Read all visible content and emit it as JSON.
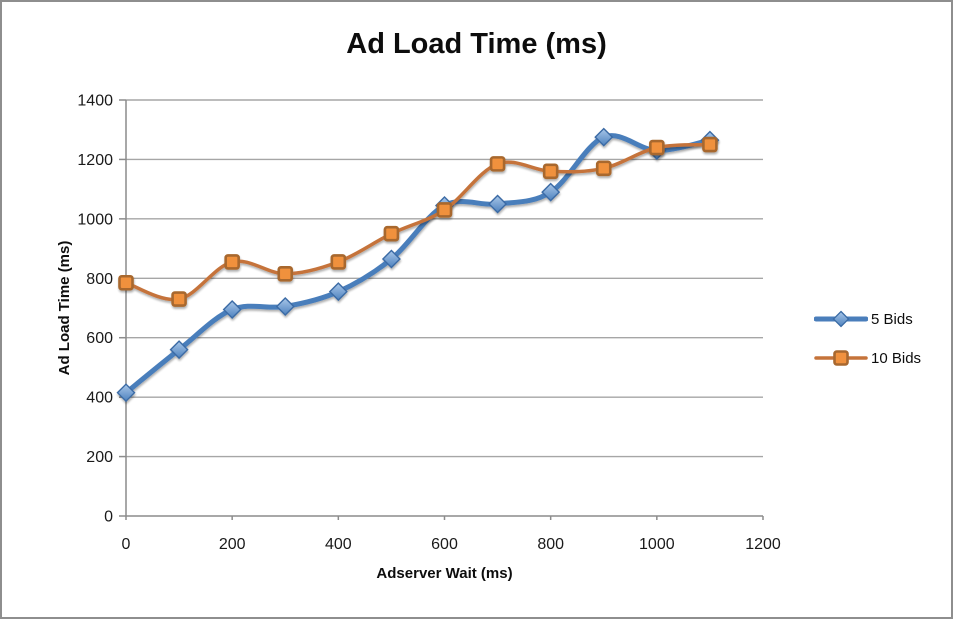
{
  "window": {
    "background": "#ffffff",
    "border_color": "#8E8E8E"
  },
  "chart": {
    "title": "Ad Load Time (ms)",
    "x_axis_title": "Adserver Wait (ms)",
    "y_axis_title": "Ad Load Time (ms)"
  },
  "chart_data": {
    "type": "line",
    "title": "Ad Load Time (ms)",
    "xlabel": "Adserver Wait (ms)",
    "ylabel": "Ad Load Time (ms)",
    "x": [
      0,
      100,
      200,
      300,
      400,
      500,
      600,
      700,
      800,
      900,
      1000,
      1100
    ],
    "series": [
      {
        "name": "5 Bids",
        "marker": "diamond",
        "line_color": "#4A7EBB",
        "line_width": 5,
        "marker_fill": "#6FA0D6",
        "marker_fill_light": "#A9C7E9",
        "marker_stroke": "#3A6BA5",
        "values": [
          415,
          560,
          695,
          705,
          755,
          865,
          1045,
          1050,
          1090,
          1275,
          1230,
          1265
        ]
      },
      {
        "name": "10 Bids",
        "marker": "square",
        "line_color": "#C5733A",
        "line_width": 3.5,
        "marker_fill": "#F0913E",
        "marker_stroke": "#A8682F",
        "values": [
          785,
          730,
          855,
          815,
          855,
          950,
          1030,
          1185,
          1160,
          1170,
          1240,
          1250
        ]
      }
    ],
    "xlim": [
      0,
      1200
    ],
    "ylim": [
      0,
      1400
    ],
    "xticks": [
      0,
      200,
      400,
      600,
      800,
      1000,
      1200
    ],
    "yticks": [
      0,
      200,
      400,
      600,
      800,
      1000,
      1200,
      1400
    ],
    "grid": true,
    "gridline_color": "#A6A6A6",
    "axis_color": "#8C8C8C",
    "smooth": true,
    "legend_position": "right"
  }
}
